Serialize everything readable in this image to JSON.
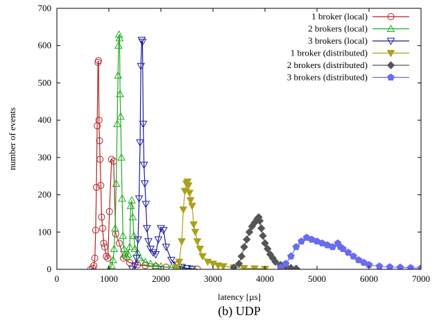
{
  "chart_data": {
    "type": "line",
    "caption": "(b) UDP",
    "xlabel": "latency [µs]",
    "ylabel": "number of events",
    "xlim": [
      0,
      7000
    ],
    "ylim": [
      0,
      700
    ],
    "xticks": [
      "0",
      "1000",
      "2000",
      "3000",
      "4000",
      "5000",
      "6000",
      "7000"
    ],
    "yticks": [
      "0",
      "100",
      "200",
      "300",
      "400",
      "500",
      "600",
      "700"
    ],
    "grid": false,
    "legend_position": "top-right",
    "series": [
      {
        "name": "1 broker (local)",
        "color": "#b22222",
        "marker": "circle-open",
        "x": [
          650,
          690,
          710,
          730,
          745,
          760,
          775,
          790,
          800,
          810,
          820,
          830,
          845,
          860,
          880,
          900,
          920,
          950,
          980,
          1010,
          1050,
          1090,
          1130,
          1200,
          1280,
          1400,
          1550,
          1700,
          1900,
          2100,
          2300,
          2500,
          2700
        ],
        "y": [
          0,
          3,
          10,
          30,
          105,
          220,
          385,
          555,
          560,
          400,
          345,
          295,
          225,
          140,
          110,
          70,
          60,
          35,
          30,
          155,
          295,
          290,
          95,
          70,
          30,
          18,
          12,
          10,
          8,
          6,
          4,
          2,
          1
        ]
      },
      {
        "name": "2 brokers (local)",
        "color": "#1fab1f",
        "marker": "triangle-up-open",
        "x": [
          1000,
          1050,
          1080,
          1100,
          1120,
          1140,
          1160,
          1175,
          1185,
          1195,
          1205,
          1215,
          1225,
          1240,
          1255,
          1270,
          1290,
          1310,
          1340,
          1370,
          1400,
          1420,
          1440,
          1460,
          1480,
          1500,
          1550,
          1600,
          1700,
          1800,
          1900,
          2000,
          2200,
          2400,
          2600
        ],
        "y": [
          0,
          10,
          25,
          55,
          110,
          230,
          390,
          520,
          600,
          630,
          620,
          470,
          410,
          300,
          190,
          90,
          55,
          40,
          35,
          40,
          60,
          170,
          185,
          140,
          90,
          55,
          45,
          30,
          20,
          15,
          10,
          8,
          5,
          3,
          1
        ]
      },
      {
        "name": "3 brokers (local)",
        "color": "#1a1a99",
        "marker": "triangle-down-open",
        "x": [
          1450,
          1500,
          1530,
          1560,
          1580,
          1600,
          1615,
          1630,
          1645,
          1660,
          1675,
          1690,
          1710,
          1730,
          1760,
          1800,
          1850,
          1900,
          1950,
          2000,
          2050,
          2100,
          2200,
          2300,
          2400,
          2500,
          2600
        ],
        "y": [
          0,
          10,
          30,
          80,
          190,
          340,
          545,
          615,
          610,
          390,
          280,
          230,
          175,
          110,
          75,
          55,
          45,
          40,
          80,
          110,
          105,
          60,
          25,
          12,
          6,
          3,
          1
        ]
      },
      {
        "name": "1 broker (distributed)",
        "color": "#aaa01a",
        "marker": "triangle-down-filled",
        "x": [
          2300,
          2350,
          2400,
          2430,
          2460,
          2490,
          2510,
          2530,
          2550,
          2570,
          2600,
          2630,
          2660,
          2700,
          2750,
          2800,
          2900,
          3000,
          3100,
          3200,
          3400,
          3600,
          3800,
          4000
        ],
        "y": [
          5,
          20,
          75,
          160,
          210,
          230,
          235,
          225,
          205,
          185,
          170,
          120,
          100,
          75,
          55,
          35,
          20,
          15,
          10,
          8,
          5,
          3,
          2,
          1
        ]
      },
      {
        "name": "2 brokers (distributed)",
        "color": "#555555",
        "marker": "diamond-filled",
        "x": [
          3400,
          3500,
          3550,
          3600,
          3650,
          3700,
          3750,
          3800,
          3850,
          3880,
          3900,
          3930,
          3960,
          4000,
          4050,
          4100,
          4150,
          4200,
          4300,
          4400,
          4500,
          4600
        ],
        "y": [
          5,
          15,
          35,
          60,
          80,
          100,
          115,
          125,
          135,
          140,
          130,
          110,
          90,
          70,
          55,
          40,
          30,
          20,
          12,
          8,
          4,
          2
        ]
      },
      {
        "name": "3 brokers (distributed)",
        "color": "#6b6bf0",
        "marker": "pentagon-filled",
        "x": [
          4300,
          4400,
          4500,
          4600,
          4700,
          4800,
          4900,
          5000,
          5100,
          5200,
          5300,
          5400,
          5450,
          5500,
          5600,
          5700,
          5800,
          5900,
          6000,
          6200,
          6400,
          6600,
          6800,
          7000
        ],
        "y": [
          5,
          15,
          35,
          60,
          75,
          85,
          80,
          75,
          70,
          65,
          60,
          70,
          60,
          55,
          45,
          35,
          25,
          18,
          12,
          8,
          6,
          5,
          4,
          3
        ]
      }
    ]
  }
}
